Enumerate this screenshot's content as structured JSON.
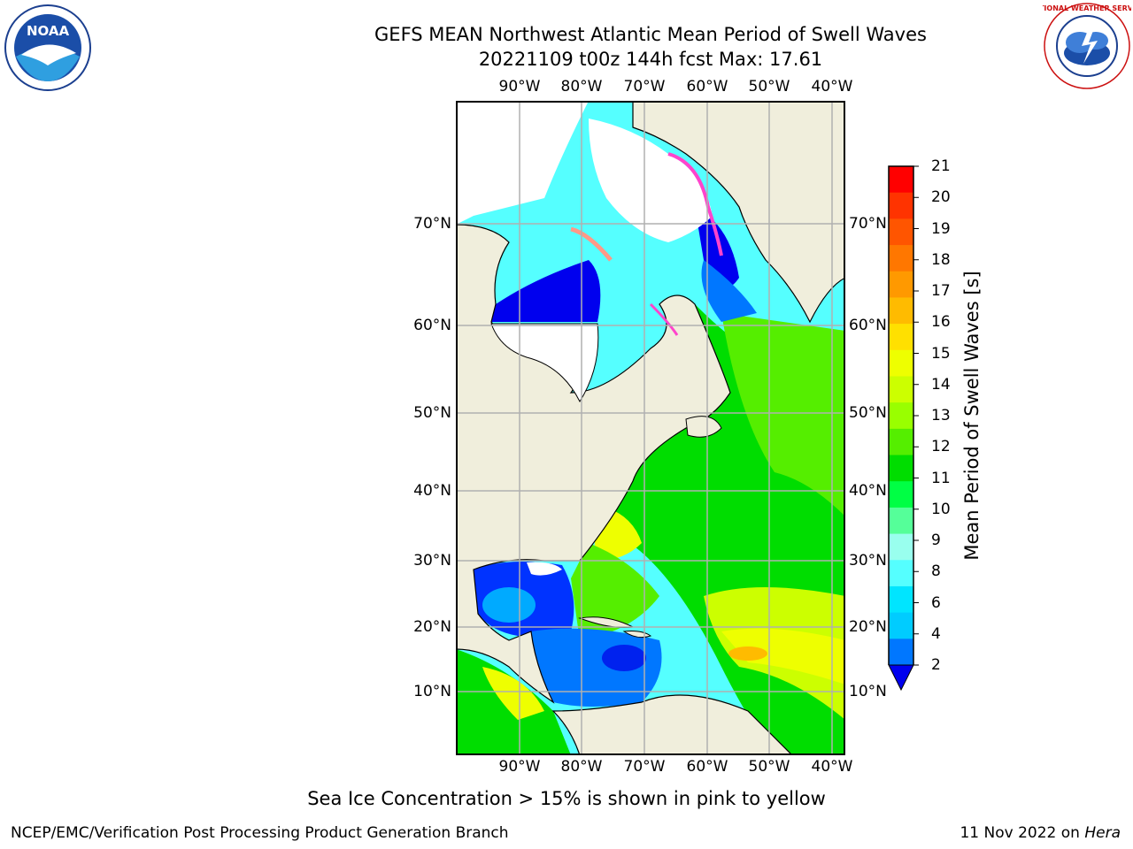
{
  "title": {
    "line1": "GEFS MEAN Northwest Atlantic Mean Period of Swell Waves",
    "line2": "20221109 t00z 144h fcst   Max: 17.61"
  },
  "axes": {
    "lon_labels": [
      "90°W",
      "80°W",
      "70°W",
      "60°W",
      "50°W",
      "40°W"
    ],
    "lat_labels": [
      "70°N",
      "60°N",
      "50°N",
      "40°N",
      "30°N",
      "20°N",
      "10°N"
    ]
  },
  "colorbar": {
    "label": "Mean Period of Swell Waves [s]",
    "ticks": [
      "21",
      "20",
      "19",
      "18",
      "17",
      "16",
      "15",
      "14",
      "13",
      "12",
      "11",
      "10",
      "9",
      "8",
      "6",
      "4",
      "2"
    ],
    "colors": [
      "#ff0000",
      "#ff3300",
      "#ff5500",
      "#ff7700",
      "#ff9900",
      "#ffbb00",
      "#ffe000",
      "#eeff00",
      "#ccff00",
      "#99ff00",
      "#55ee00",
      "#00dd00",
      "#00ff44",
      "#55ff99",
      "#99ffee",
      "#55ffff",
      "#00e5ff",
      "#00ccff",
      "#0077ff"
    ],
    "extend_color": "#0000ee"
  },
  "map_colors": {
    "land": "#f0eedc",
    "ice_mask": "#ffffff",
    "coast": "#000000",
    "grid": "#b0b0b0",
    "ice_edge": "#ff44cc"
  },
  "note": "Sea Ice Concentration > 15% is shown in pink to yellow",
  "footer": {
    "left": "NCEP/EMC/Verification Post Processing Product Generation Branch",
    "date": "11 Nov 2022 on ",
    "machine": "Hera"
  },
  "logos": {
    "noaa": "NOAA",
    "nws": "NATIONAL WEATHER SERVICE"
  }
}
